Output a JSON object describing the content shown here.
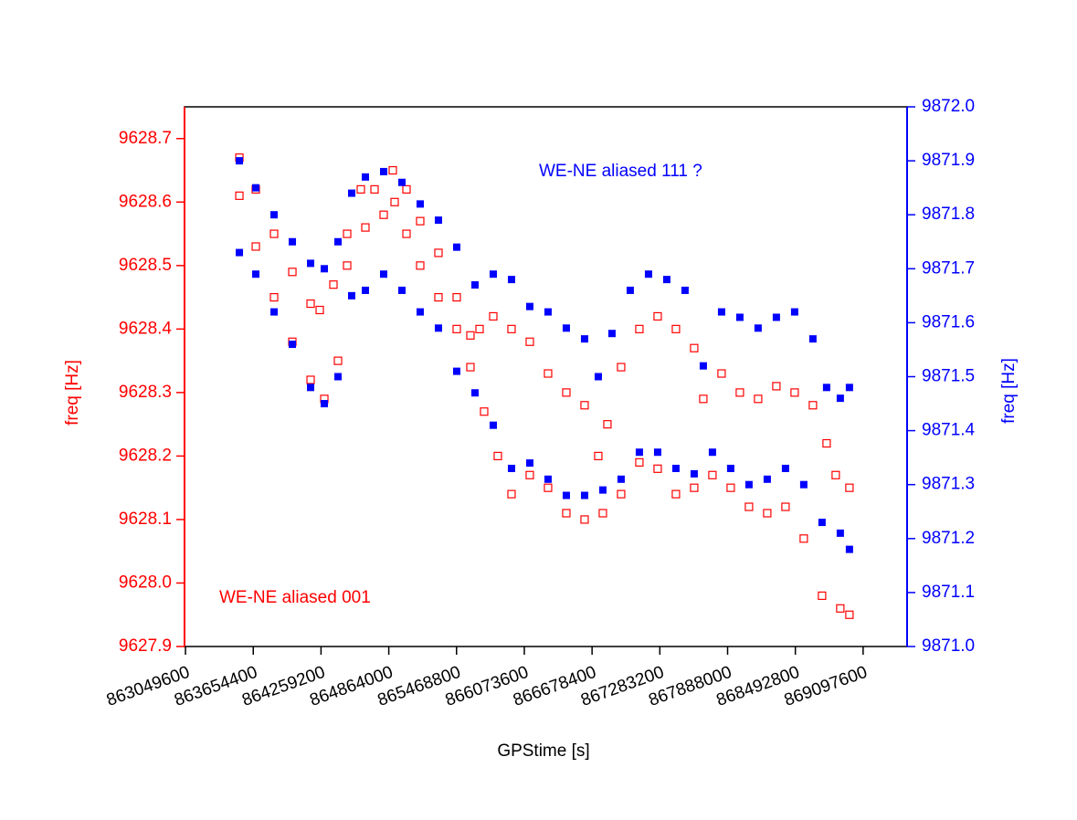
{
  "chart_data": {
    "type": "scatter",
    "xlabel": "GPStime [s]",
    "ylabel": "freq [Hz]",
    "y2label": "freq [Hz]",
    "xlim": [
      863041000,
      869490000
    ],
    "xticks": [
      863049600,
      863654400,
      864259200,
      864864000,
      865468800,
      866073600,
      866678400,
      867283200,
      867888000,
      868492800,
      869097600
    ],
    "ylim": [
      9627.9,
      9628.75
    ],
    "yticks": [
      9627.9,
      {
        "value": 9628,
        "label": "9628.0"
      },
      9628.1,
      9628.2,
      9628.3,
      9628.4,
      9628.5,
      9628.6,
      9628.7
    ],
    "y2lim": [
      9871,
      9872
    ],
    "y2ticks": [
      {
        "value": 9871,
        "label": "9871.0"
      },
      9871.1,
      9871.2,
      9871.3,
      9871.4,
      9871.5,
      9871.6,
      9871.7,
      9871.8,
      9871.9,
      {
        "value": 9872,
        "label": "9872.0"
      }
    ],
    "series": [
      {
        "name": "WE-NE aliased 001",
        "color": "#ff0000",
        "marker": "open-square",
        "axis": "y",
        "x": [
          863530500,
          863677200,
          863840200,
          864003300,
          864166300,
          864247800,
          864370100,
          864492300,
          864655300,
          864818400,
          864916200,
          865022100,
          865144400,
          865307400,
          865470400,
          865592700,
          865715000,
          865837200,
          865959500,
          866122500,
          866285500,
          866448600,
          866611600,
          866774600,
          866937600,
          867100600,
          867263700,
          867426700,
          867589700,
          867752700,
          867915700,
          868078800,
          868241800,
          868404800,
          868567800,
          868730800,
          868893900,
          868975400,
          863530500,
          863677200,
          863840200,
          864003300,
          864166300,
          864288600,
          864410800,
          864492300,
          864614600,
          864736900,
          864899900,
          865022100,
          865144400,
          865307400,
          865470400,
          865592700,
          865674200,
          865796500,
          865959500,
          866122500,
          866285500,
          866448600,
          866611600,
          866733900,
          866815400,
          866937600,
          867100600,
          867263700,
          867426700,
          867589700,
          867671200,
          867834200,
          867997300,
          868160300,
          868323300,
          868486300,
          868649300,
          868771600,
          868853100,
          868975400
        ],
        "values": [
          9628.67,
          9628.62,
          9628.55,
          9628.49,
          9628.44,
          9628.43,
          9628.47,
          9628.55,
          9628.56,
          9628.58,
          9628.6,
          9628.55,
          9628.5,
          9628.45,
          9628.4,
          9628.34,
          9628.27,
          9628.2,
          9628.14,
          9628.17,
          9628.15,
          9628.11,
          9628.1,
          9628.11,
          9628.14,
          9628.19,
          9628.18,
          9628.14,
          9628.15,
          9628.17,
          9628.15,
          9628.12,
          9628.11,
          9628.12,
          9628.07,
          9627.98,
          9627.96,
          9627.95,
          9628.61,
          9628.53,
          9628.45,
          9628.38,
          9628.32,
          9628.29,
          9628.35,
          9628.5,
          9628.62,
          9628.62,
          9628.65,
          9628.62,
          9628.57,
          9628.52,
          9628.45,
          9628.39,
          9628.4,
          9628.42,
          9628.4,
          9628.38,
          9628.33,
          9628.3,
          9628.28,
          9628.2,
          9628.25,
          9628.34,
          9628.4,
          9628.42,
          9628.4,
          9628.37,
          9628.29,
          9628.33,
          9628.3,
          9628.29,
          9628.31,
          9628.3,
          9628.28,
          9628.22,
          9628.17,
          9628.15
        ]
      },
      {
        "name": "WE-NE aliased 111 ?",
        "color": "#0000ff",
        "marker": "square",
        "axis": "y2",
        "x": [
          863530500,
          863677200,
          863840200,
          864003300,
          864166300,
          864288600,
          864410800,
          864533100,
          864655300,
          864818400,
          864981400,
          865144400,
          865307400,
          865470400,
          865633500,
          865796500,
          865959500,
          866122500,
          866285500,
          866448600,
          866611600,
          866733900,
          866856100,
          867019100,
          867182200,
          867345200,
          867508200,
          867671200,
          867834200,
          867997300,
          868160300,
          868323300,
          868486300,
          868649300,
          868771600,
          868893900,
          868975400,
          863530500,
          863677200,
          863840200,
          864003300,
          864166300,
          864288600,
          864410800,
          864533100,
          864655300,
          864818400,
          864981400,
          865144400,
          865307400,
          865470400,
          865633500,
          865796500,
          865959500,
          866122500,
          866285500,
          866448600,
          866611600,
          866774600,
          866937600,
          867100600,
          867263700,
          867426700,
          867589700,
          867752700,
          867915700,
          868078800,
          868241800,
          868404800,
          868567800,
          868730800,
          868893900,
          868975400
        ],
        "values": [
          9871.9,
          9871.85,
          9871.8,
          9871.75,
          9871.71,
          9871.7,
          9871.75,
          9871.84,
          9871.87,
          9871.88,
          9871.86,
          9871.82,
          9871.79,
          9871.74,
          9871.67,
          9871.69,
          9871.68,
          9871.63,
          9871.62,
          9871.59,
          9871.57,
          9871.5,
          9871.58,
          9871.66,
          9871.69,
          9871.68,
          9871.66,
          9871.52,
          9871.62,
          9871.61,
          9871.59,
          9871.61,
          9871.62,
          9871.57,
          9871.48,
          9871.46,
          9871.48,
          9871.73,
          9871.69,
          9871.62,
          9871.56,
          9871.48,
          9871.45,
          9871.5,
          9871.65,
          9871.66,
          9871.69,
          9871.66,
          9871.62,
          9871.59,
          9871.51,
          9871.47,
          9871.41,
          9871.33,
          9871.34,
          9871.31,
          9871.28,
          9871.28,
          9871.29,
          9871.31,
          9871.36,
          9871.36,
          9871.33,
          9871.32,
          9871.36,
          9871.33,
          9871.3,
          9871.31,
          9871.33,
          9871.3,
          9871.23,
          9871.21,
          9871.18
        ]
      }
    ]
  }
}
